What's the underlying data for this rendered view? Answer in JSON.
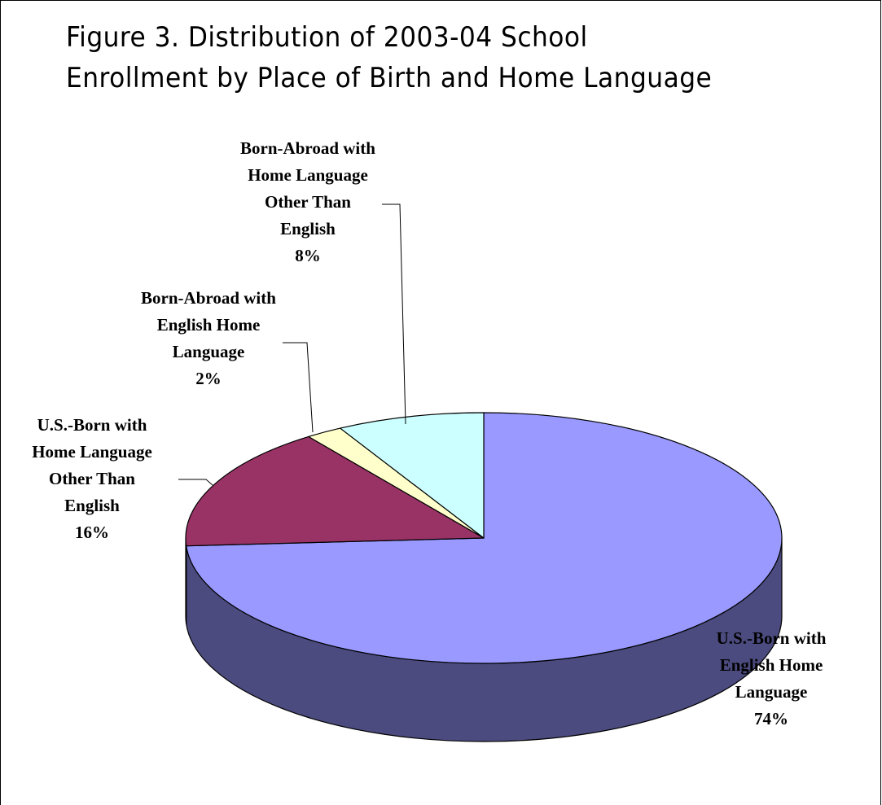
{
  "chart_data": {
    "type": "pie",
    "title": "Figure 3.  Distribution of 2003-04 School Enrollment by Place of Birth and Home Language",
    "title_lines": [
      "Figure 3.  Distribution of 2003-04 School",
      "Enrollment by Place of Birth and Home Language"
    ],
    "style": "3d",
    "label_format": "name-and-percent",
    "slices": [
      {
        "name_lines": [
          "U.S.-Born with",
          "English Home",
          "Language"
        ],
        "value": 74,
        "percent_label": "74%",
        "color": "#9999ff",
        "side_color": "#4b4b7f"
      },
      {
        "name_lines": [
          "U.S.-Born with",
          "Home Language",
          "Other Than",
          "English"
        ],
        "value": 16,
        "percent_label": "16%",
        "color": "#993366",
        "side_color": "#4c1933"
      },
      {
        "name_lines": [
          "Born-Abroad with",
          "English Home",
          "Language"
        ],
        "value": 2,
        "percent_label": "2%",
        "color": "#ffffcc",
        "side_color": "#7f7f66"
      },
      {
        "name_lines": [
          "Born-Abroad with",
          "Home Language",
          "Other Than",
          "English"
        ],
        "value": 8,
        "percent_label": "8%",
        "color": "#ccffff",
        "side_color": "#667f7f"
      }
    ]
  }
}
